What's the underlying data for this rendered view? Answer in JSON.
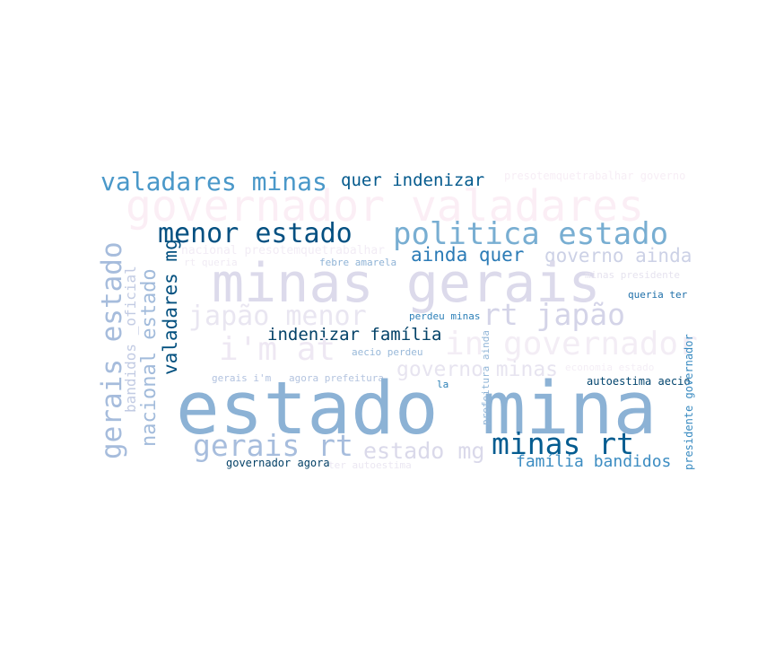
{
  "words": [
    {
      "text": "governador valadares",
      "color": "#fbeef5"
    },
    {
      "text": "valadares minas",
      "color": "#4a98c9"
    },
    {
      "text": "quer indenizar",
      "color": "#045a8d"
    },
    {
      "text": "presotemquetrabalhar governo",
      "color": "#f7eef6"
    },
    {
      "text": "menor estado",
      "color": "#045081"
    },
    {
      "text": "politica estado",
      "color": "#78aed2"
    },
    {
      "text": "ainda quer",
      "color": "#2b7bb6"
    },
    {
      "text": "governo ainda",
      "color": "#ccd1e6"
    },
    {
      "text": "nacional presotemquetrabalhar",
      "color": "#f2ecf5"
    },
    {
      "text": "rt queria",
      "color": "#f0ebf4"
    },
    {
      "text": "febre amarela",
      "color": "#8fb3d6"
    },
    {
      "text": "minas gerais",
      "color": "#dcdaeb"
    },
    {
      "text": "minas presidente",
      "color": "#e6e3ef"
    },
    {
      "text": "queria ter",
      "color": "#1e6fa9"
    },
    {
      "text": "japão menor",
      "color": "#e9e6f1"
    },
    {
      "text": "rt japão",
      "color": "#d4d4e8"
    },
    {
      "text": "perdeu minas",
      "color": "#2d80b8"
    },
    {
      "text": "indenizar família",
      "color": "#034268"
    },
    {
      "text": "i'm at",
      "color": "#eee8f3"
    },
    {
      "text": "in governador",
      "color": "#f3edf5"
    },
    {
      "text": "aecio perdeu",
      "color": "#99b9d9"
    },
    {
      "text": "governo minas",
      "color": "#e7e4f0"
    },
    {
      "text": "economia estado",
      "color": "#f4eef6"
    },
    {
      "text": "gerais i'm",
      "color": "#b2c2df"
    },
    {
      "text": "agora prefeitura",
      "color": "#b4c4df"
    },
    {
      "text": "la",
      "color": "#2a7fb6"
    },
    {
      "text": "autoestima aecio",
      "color": "#03456e"
    },
    {
      "text": "estado mina",
      "color": "#8cb2d5"
    },
    {
      "text": "gerais rt",
      "color": "#a7bddd"
    },
    {
      "text": "estado mg",
      "color": "#dad9ea"
    },
    {
      "text": "minas rt",
      "color": "#045c90"
    },
    {
      "text": "família bandidos",
      "color": "#3d8dc2"
    },
    {
      "text": "governador agora",
      "color": "#034066"
    },
    {
      "text": "ter autoestima",
      "color": "#ebe7f2"
    },
    {
      "text": "gerais estado",
      "color": "#a6bcdc"
    },
    {
      "text": "bandidos _oficial",
      "color": "#c2cbe3"
    },
    {
      "text": "nacional estado",
      "color": "#a2bbdb"
    },
    {
      "text": "valadares mg",
      "color": "#03507f"
    },
    {
      "text": "prefeitura ainda",
      "color": "#91b5d7"
    },
    {
      "text": "presidente governador",
      "color": "#3a8bc1"
    }
  ]
}
